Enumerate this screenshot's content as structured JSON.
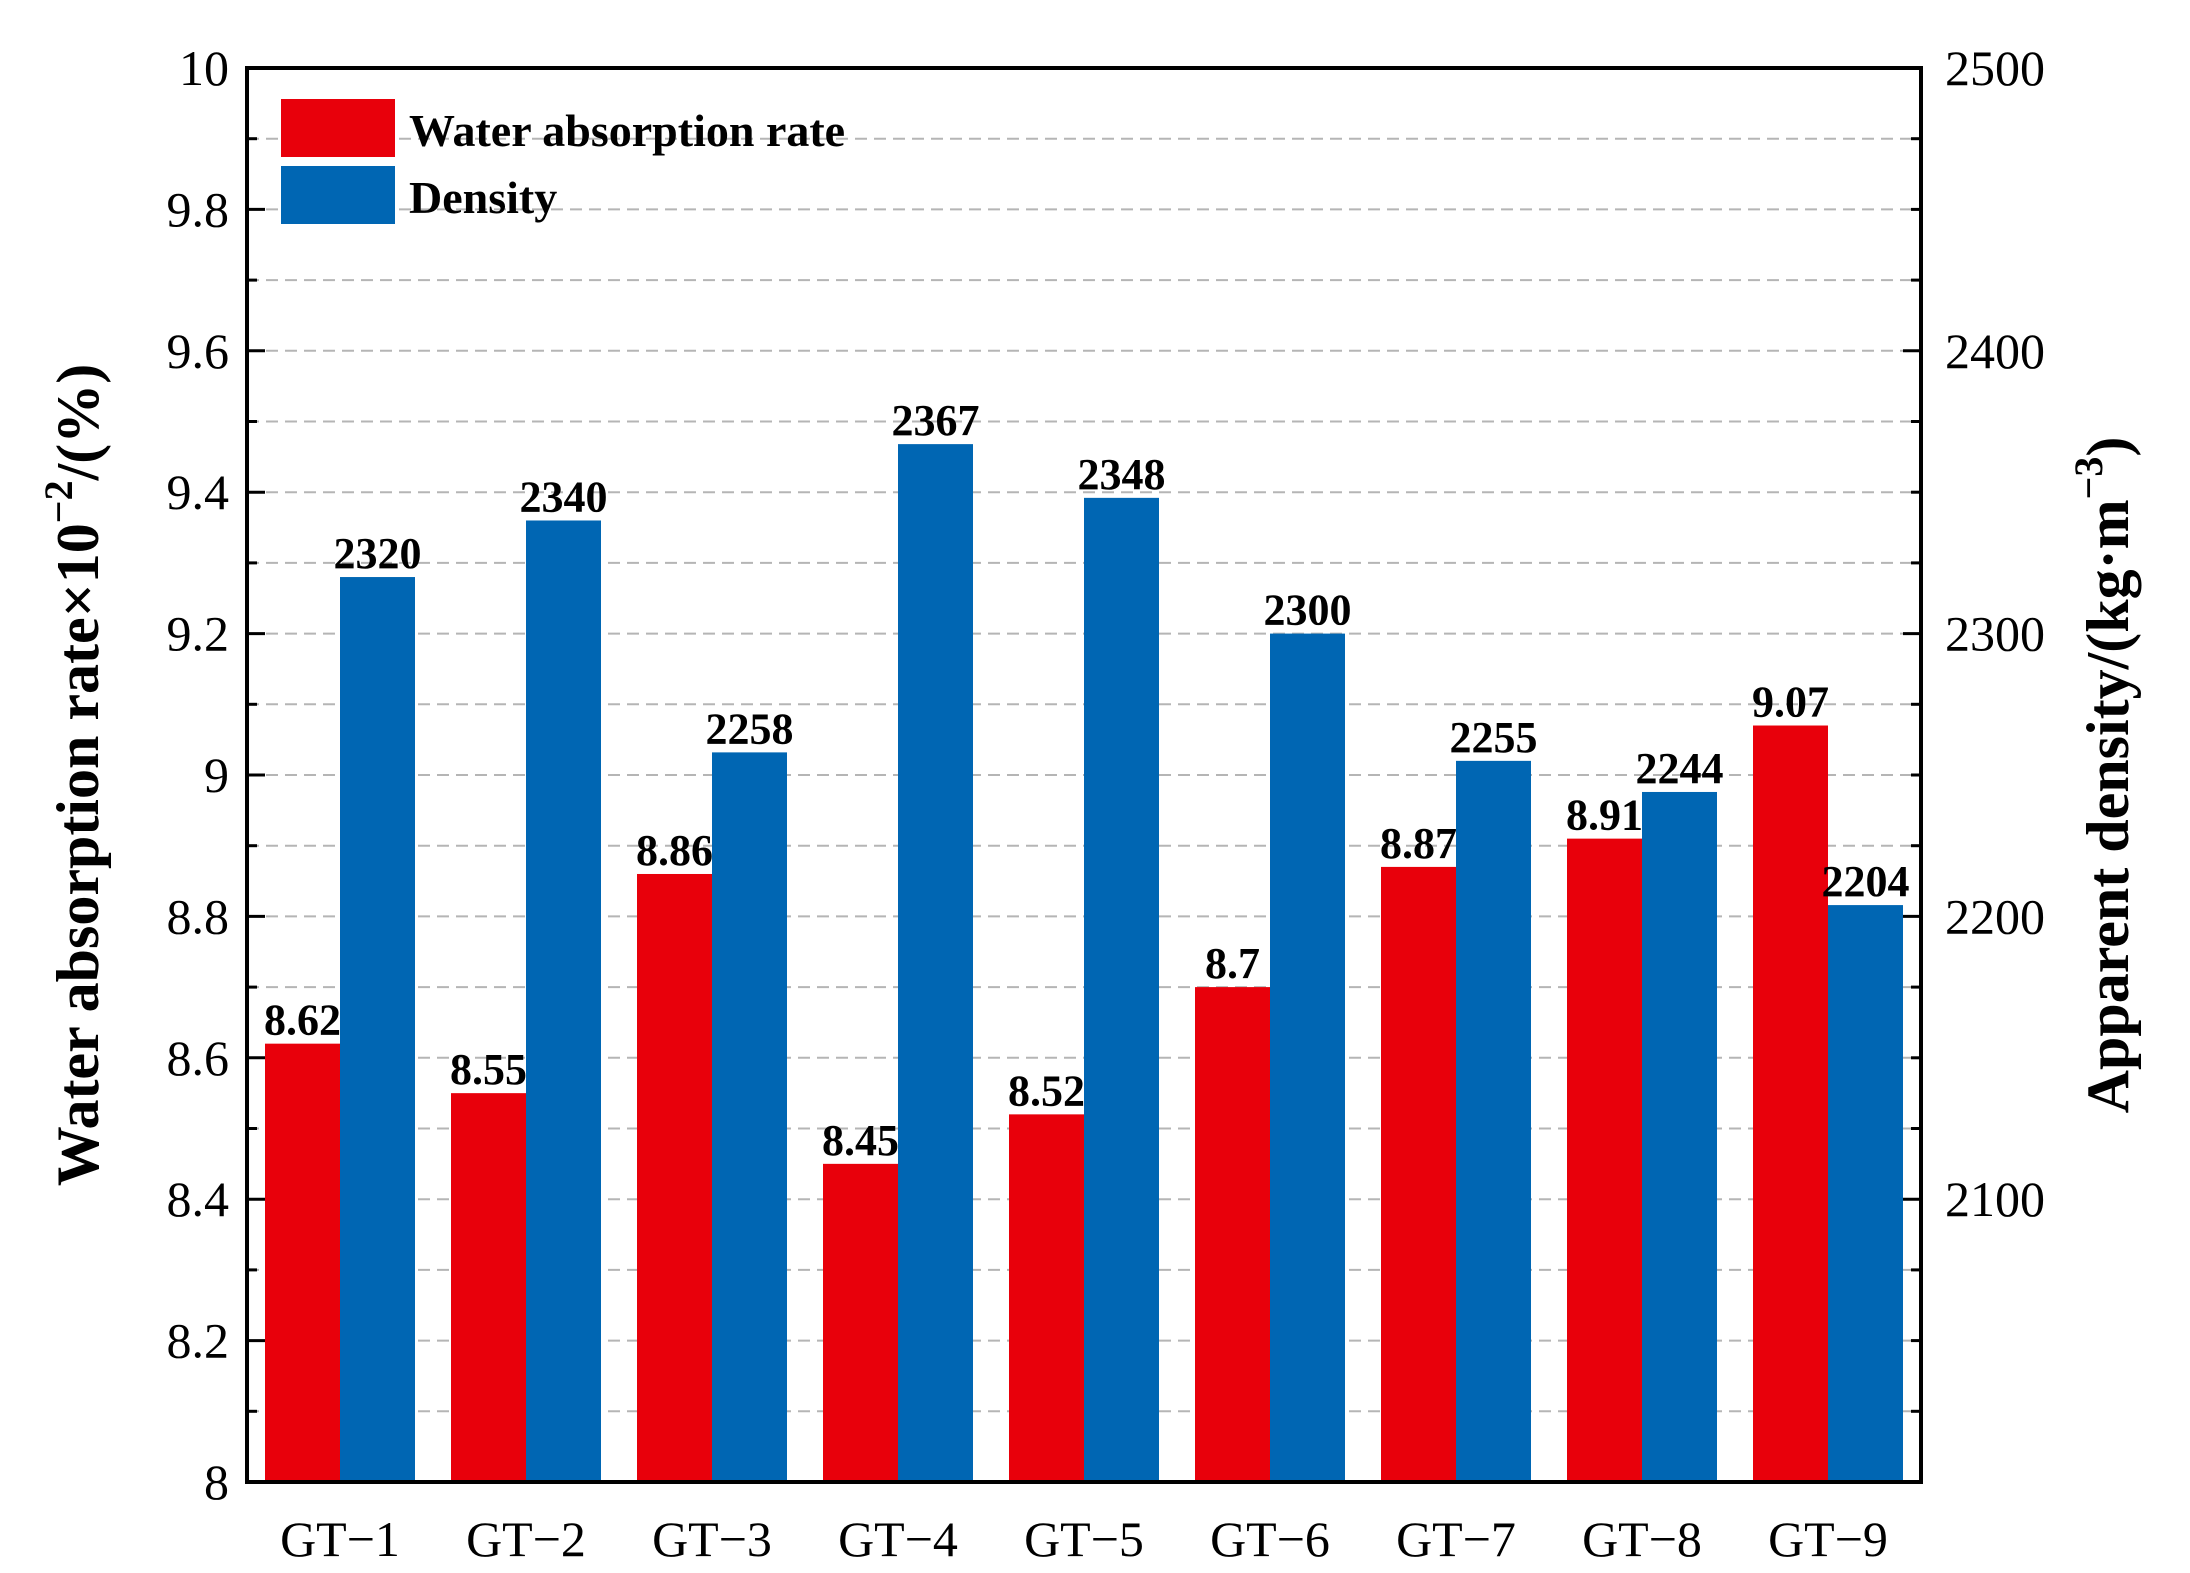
{
  "chart_data": {
    "type": "bar",
    "categories": [
      "GT−1",
      "GT−2",
      "GT−3",
      "GT−4",
      "GT−5",
      "GT−6",
      "GT−7",
      "GT−8",
      "GT−9"
    ],
    "series": [
      {
        "name": "Water absorption rate",
        "axis": "left",
        "color": "#e8000b",
        "values": [
          8.62,
          8.55,
          8.86,
          8.45,
          8.52,
          8.7,
          8.87,
          8.91,
          9.07
        ],
        "labels": [
          "8.62",
          "8.55",
          "8.86",
          "8.45",
          "8.52",
          "8.7",
          "8.87",
          "8.91",
          "9.07"
        ]
      },
      {
        "name": "Density",
        "axis": "right",
        "color": "#0066b3",
        "values": [
          2320,
          2340,
          2258,
          2367,
          2348,
          2300,
          2255,
          2244,
          2204
        ],
        "labels": [
          "2320",
          "2340",
          "2258",
          "2367",
          "2348",
          "2300",
          "2255",
          "2244",
          "2204"
        ]
      }
    ],
    "left_axis": {
      "label_main": "Water absorption rate×10",
      "label_sup": "−2",
      "label_tail": "/(%)",
      "ylim": [
        8,
        10
      ],
      "ticks": [
        "8",
        "8.2",
        "8.4",
        "8.6",
        "8.8",
        "9",
        "9.2",
        "9.4",
        "9.6",
        "9.8",
        "10"
      ]
    },
    "right_axis": {
      "label_main": "Apparent density/(kg·m",
      "label_sup": "−3",
      "label_tail": ")",
      "ylim": [
        2000,
        2500
      ],
      "ticks": [
        "2100",
        "2200",
        "2300",
        "2400",
        "2500"
      ]
    },
    "grid": true,
    "legend": "top-left"
  }
}
